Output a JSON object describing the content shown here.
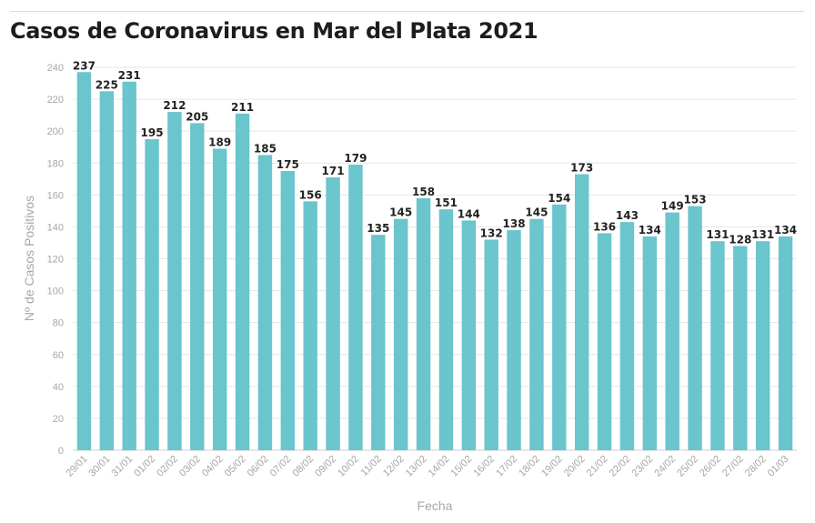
{
  "title": "Casos de Coronavirus en Mar del Plata 2021",
  "colors": {
    "bar": "#6ac5cc",
    "grid": "#e6e6e6",
    "axis_text": "#a6a6a6",
    "value_text": "#222222"
  },
  "chart_data": {
    "type": "bar",
    "title": "Casos de Coronavirus en Mar del Plata 2021",
    "xlabel": "Fecha",
    "ylabel": "Nº de Casos Positivos",
    "ylim": [
      0,
      240
    ],
    "yticks": [
      0,
      20,
      40,
      60,
      80,
      100,
      120,
      140,
      160,
      180,
      200,
      220,
      240
    ],
    "grid": true,
    "data_labels": true,
    "categories": [
      "29/01",
      "30/01",
      "31/01",
      "01/02",
      "02/02",
      "03/02",
      "04/02",
      "05/02",
      "06/02",
      "07/02",
      "08/02",
      "09/02",
      "10/02",
      "11/02",
      "12/02",
      "13/02",
      "14/02",
      "15/02",
      "16/02",
      "17/02",
      "18/02",
      "19/02",
      "20/02",
      "21/02",
      "22/02",
      "23/02",
      "24/02",
      "25/02",
      "26/02",
      "27/02",
      "28/02",
      "01/03"
    ],
    "values": [
      237,
      225,
      231,
      195,
      212,
      205,
      189,
      211,
      185,
      175,
      156,
      171,
      179,
      135,
      145,
      158,
      151,
      144,
      132,
      138,
      145,
      154,
      173,
      136,
      143,
      134,
      149,
      153,
      131,
      128,
      131,
      134
    ]
  }
}
